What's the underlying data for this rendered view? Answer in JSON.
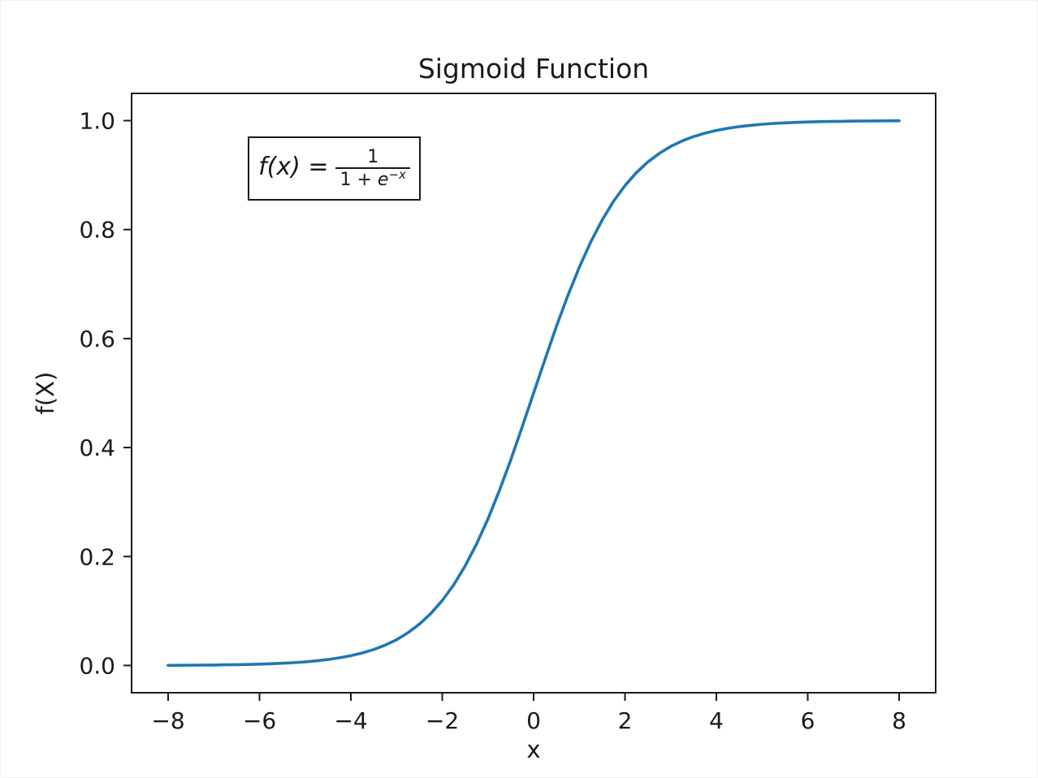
{
  "chart_data": {
    "type": "line",
    "title": "Sigmoid Function",
    "xlabel": "x",
    "ylabel": "f(X)",
    "xlim": [
      -8.8,
      8.8
    ],
    "ylim": [
      -0.05,
      1.05
    ],
    "xticks": [
      -8,
      -6,
      -4,
      -2,
      0,
      2,
      4,
      6,
      8
    ],
    "xtick_labels": [
      "−8",
      "−6",
      "−4",
      "−2",
      "0",
      "2",
      "4",
      "6",
      "8"
    ],
    "yticks": [
      0.0,
      0.2,
      0.4,
      0.6,
      0.8,
      1.0
    ],
    "ytick_labels": [
      "0.0",
      "0.2",
      "0.4",
      "0.6",
      "0.8",
      "1.0"
    ],
    "grid": false,
    "line_color": "#1f77b4",
    "axis_color": "#1a1a1a",
    "background_color": "#ffffff",
    "series": [
      {
        "name": "sigmoid",
        "x": [
          -8,
          -7.75,
          -7.5,
          -7.25,
          -7,
          -6.75,
          -6.5,
          -6.25,
          -6,
          -5.75,
          -5.5,
          -5.25,
          -5,
          -4.75,
          -4.5,
          -4.25,
          -4,
          -3.75,
          -3.5,
          -3.25,
          -3,
          -2.75,
          -2.5,
          -2.25,
          -2,
          -1.75,
          -1.5,
          -1.25,
          -1,
          -0.75,
          -0.5,
          -0.25,
          0,
          0.25,
          0.5,
          0.75,
          1,
          1.25,
          1.5,
          1.75,
          2,
          2.25,
          2.5,
          2.75,
          3,
          3.25,
          3.5,
          3.75,
          4,
          4.25,
          4.5,
          4.75,
          5,
          5.25,
          5.5,
          5.75,
          6,
          6.25,
          6.5,
          6.75,
          7,
          7.25,
          7.5,
          7.75,
          8
        ],
        "y": [
          0.0003,
          0.0004,
          0.0006,
          0.0007,
          0.0009,
          0.0012,
          0.0015,
          0.0019,
          0.0025,
          0.0032,
          0.0041,
          0.0052,
          0.0067,
          0.0086,
          0.011,
          0.0141,
          0.018,
          0.023,
          0.0293,
          0.0373,
          0.0474,
          0.0601,
          0.0759,
          0.0953,
          0.1192,
          0.148,
          0.1824,
          0.2227,
          0.2689,
          0.3208,
          0.3775,
          0.4378,
          0.5,
          0.5622,
          0.6225,
          0.6792,
          0.7311,
          0.7773,
          0.8176,
          0.852,
          0.8808,
          0.9047,
          0.9241,
          0.9399,
          0.9526,
          0.9627,
          0.9707,
          0.977,
          0.982,
          0.9859,
          0.989,
          0.9914,
          0.9933,
          0.9948,
          0.9959,
          0.9968,
          0.9975,
          0.9981,
          0.9985,
          0.9988,
          0.9991,
          0.9993,
          0.9994,
          0.9996,
          0.9997
        ]
      }
    ],
    "annotation": {
      "lhs": "f(x) =",
      "numerator": "1",
      "den_base": "1 + ",
      "den_var": "e",
      "exponent": "−x"
    }
  }
}
